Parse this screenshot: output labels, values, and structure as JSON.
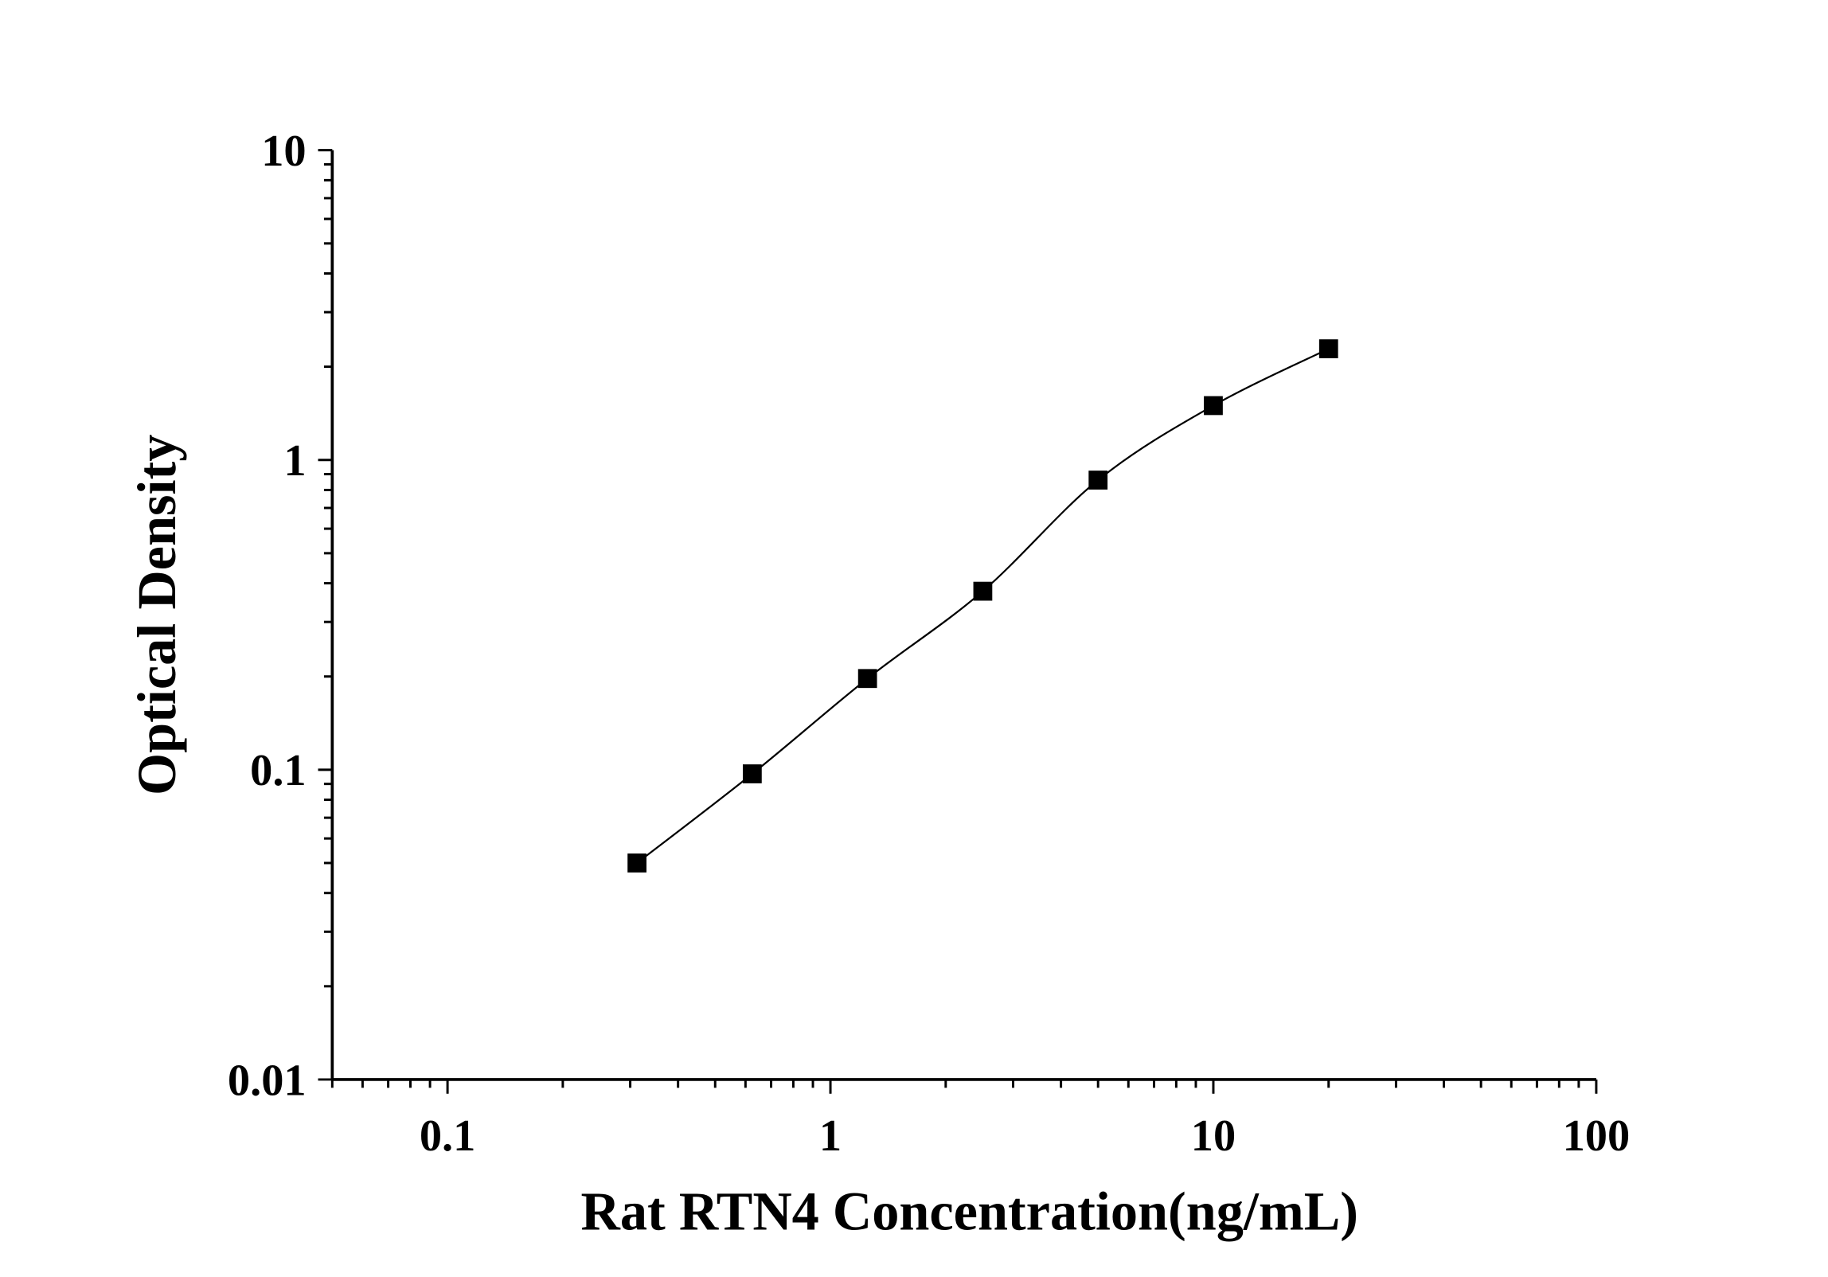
{
  "chart_data": {
    "type": "line",
    "title": "",
    "xlabel": "Rat RTN4 Concentration(ng/mL)",
    "ylabel": "Optical Density",
    "xscale": "log",
    "yscale": "log",
    "xlim": [
      0.05,
      100
    ],
    "ylim": [
      0.01,
      10
    ],
    "x_tick_labels": [
      "0.1",
      "1",
      "10",
      "100"
    ],
    "x_tick_values": [
      0.1,
      1,
      10,
      100
    ],
    "y_tick_labels": [
      "0.01",
      "0.1",
      "1",
      "10"
    ],
    "y_tick_values": [
      0.01,
      0.1,
      1,
      10
    ],
    "grid": false,
    "marker": "square",
    "color": "#000000",
    "series": [
      {
        "x": [
          0.3125,
          0.625,
          1.25,
          2.5,
          5,
          10,
          20
        ],
        "y": [
          0.05,
          0.097,
          0.197,
          0.377,
          0.861,
          1.498,
          2.285
        ]
      }
    ]
  }
}
